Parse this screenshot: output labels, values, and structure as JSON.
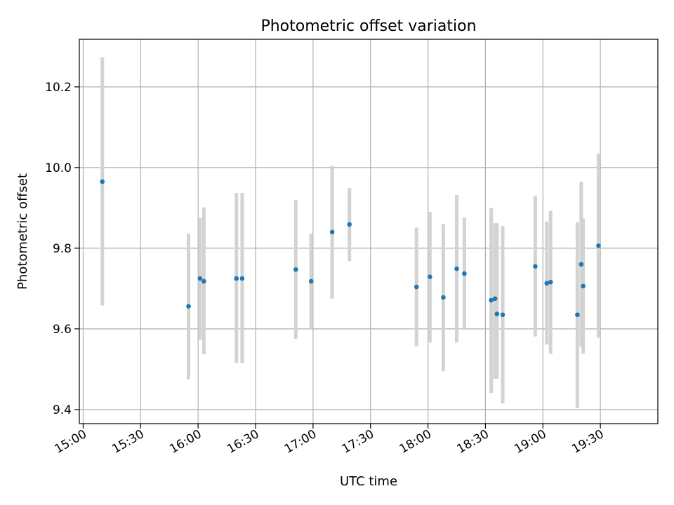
{
  "chart_data": {
    "type": "scatter",
    "title": "Photometric offset variation",
    "xlabel": "UTC time",
    "ylabel": "Photometric offset",
    "xlim": [
      "14:58",
      "20:00"
    ],
    "ylim": [
      9.365,
      10.318
    ],
    "grid": true,
    "marker_color": "#1f77b4",
    "errorbar_color": "#d3d3d3",
    "xticks": [
      "15:00",
      "15:30",
      "16:00",
      "16:30",
      "17:00",
      "17:30",
      "18:00",
      "18:30",
      "19:00",
      "19:30"
    ],
    "yticks": [
      9.4,
      9.6,
      9.8,
      10.0,
      10.2
    ],
    "points": [
      {
        "x": "15:10",
        "y": 9.965,
        "lo": 9.658,
        "hi": 10.273
      },
      {
        "x": "15:55",
        "y": 9.656,
        "lo": 9.475,
        "hi": 9.836
      },
      {
        "x": "16:01",
        "y": 9.725,
        "lo": 9.573,
        "hi": 9.875
      },
      {
        "x": "16:03",
        "y": 9.718,
        "lo": 9.537,
        "hi": 9.901
      },
      {
        "x": "16:20",
        "y": 9.725,
        "lo": 9.515,
        "hi": 9.937
      },
      {
        "x": "16:23",
        "y": 9.725,
        "lo": 9.515,
        "hi": 9.937
      },
      {
        "x": "16:51",
        "y": 9.747,
        "lo": 9.575,
        "hi": 9.92
      },
      {
        "x": "16:59",
        "y": 9.718,
        "lo": 9.6,
        "hi": 9.836
      },
      {
        "x": "17:10",
        "y": 9.84,
        "lo": 9.675,
        "hi": 10.004
      },
      {
        "x": "17:19",
        "y": 9.859,
        "lo": 9.768,
        "hi": 9.949
      },
      {
        "x": "17:54",
        "y": 9.704,
        "lo": 9.557,
        "hi": 9.851
      },
      {
        "x": "18:01",
        "y": 9.729,
        "lo": 9.566,
        "hi": 9.89
      },
      {
        "x": "18:08",
        "y": 9.678,
        "lo": 9.495,
        "hi": 9.86
      },
      {
        "x": "18:15",
        "y": 9.749,
        "lo": 9.566,
        "hi": 9.932
      },
      {
        "x": "18:19",
        "y": 9.737,
        "lo": 9.597,
        "hi": 9.876
      },
      {
        "x": "18:33",
        "y": 9.671,
        "lo": 9.441,
        "hi": 9.9
      },
      {
        "x": "18:35",
        "y": 9.675,
        "lo": 9.476,
        "hi": 9.862
      },
      {
        "x": "18:36",
        "y": 9.637,
        "lo": 9.476,
        "hi": 9.862
      },
      {
        "x": "18:39",
        "y": 9.635,
        "lo": 9.415,
        "hi": 9.855
      },
      {
        "x": "18:56",
        "y": 9.755,
        "lo": 9.581,
        "hi": 9.93
      },
      {
        "x": "19:02",
        "y": 9.713,
        "lo": 9.561,
        "hi": 9.866
      },
      {
        "x": "19:04",
        "y": 9.716,
        "lo": 9.538,
        "hi": 9.893
      },
      {
        "x": "19:18",
        "y": 9.635,
        "lo": 9.404,
        "hi": 9.864
      },
      {
        "x": "19:20",
        "y": 9.76,
        "lo": 9.556,
        "hi": 9.965
      },
      {
        "x": "19:21",
        "y": 9.706,
        "lo": 9.538,
        "hi": 9.874
      },
      {
        "x": "19:29",
        "y": 9.806,
        "lo": 9.578,
        "hi": 10.035
      }
    ]
  }
}
